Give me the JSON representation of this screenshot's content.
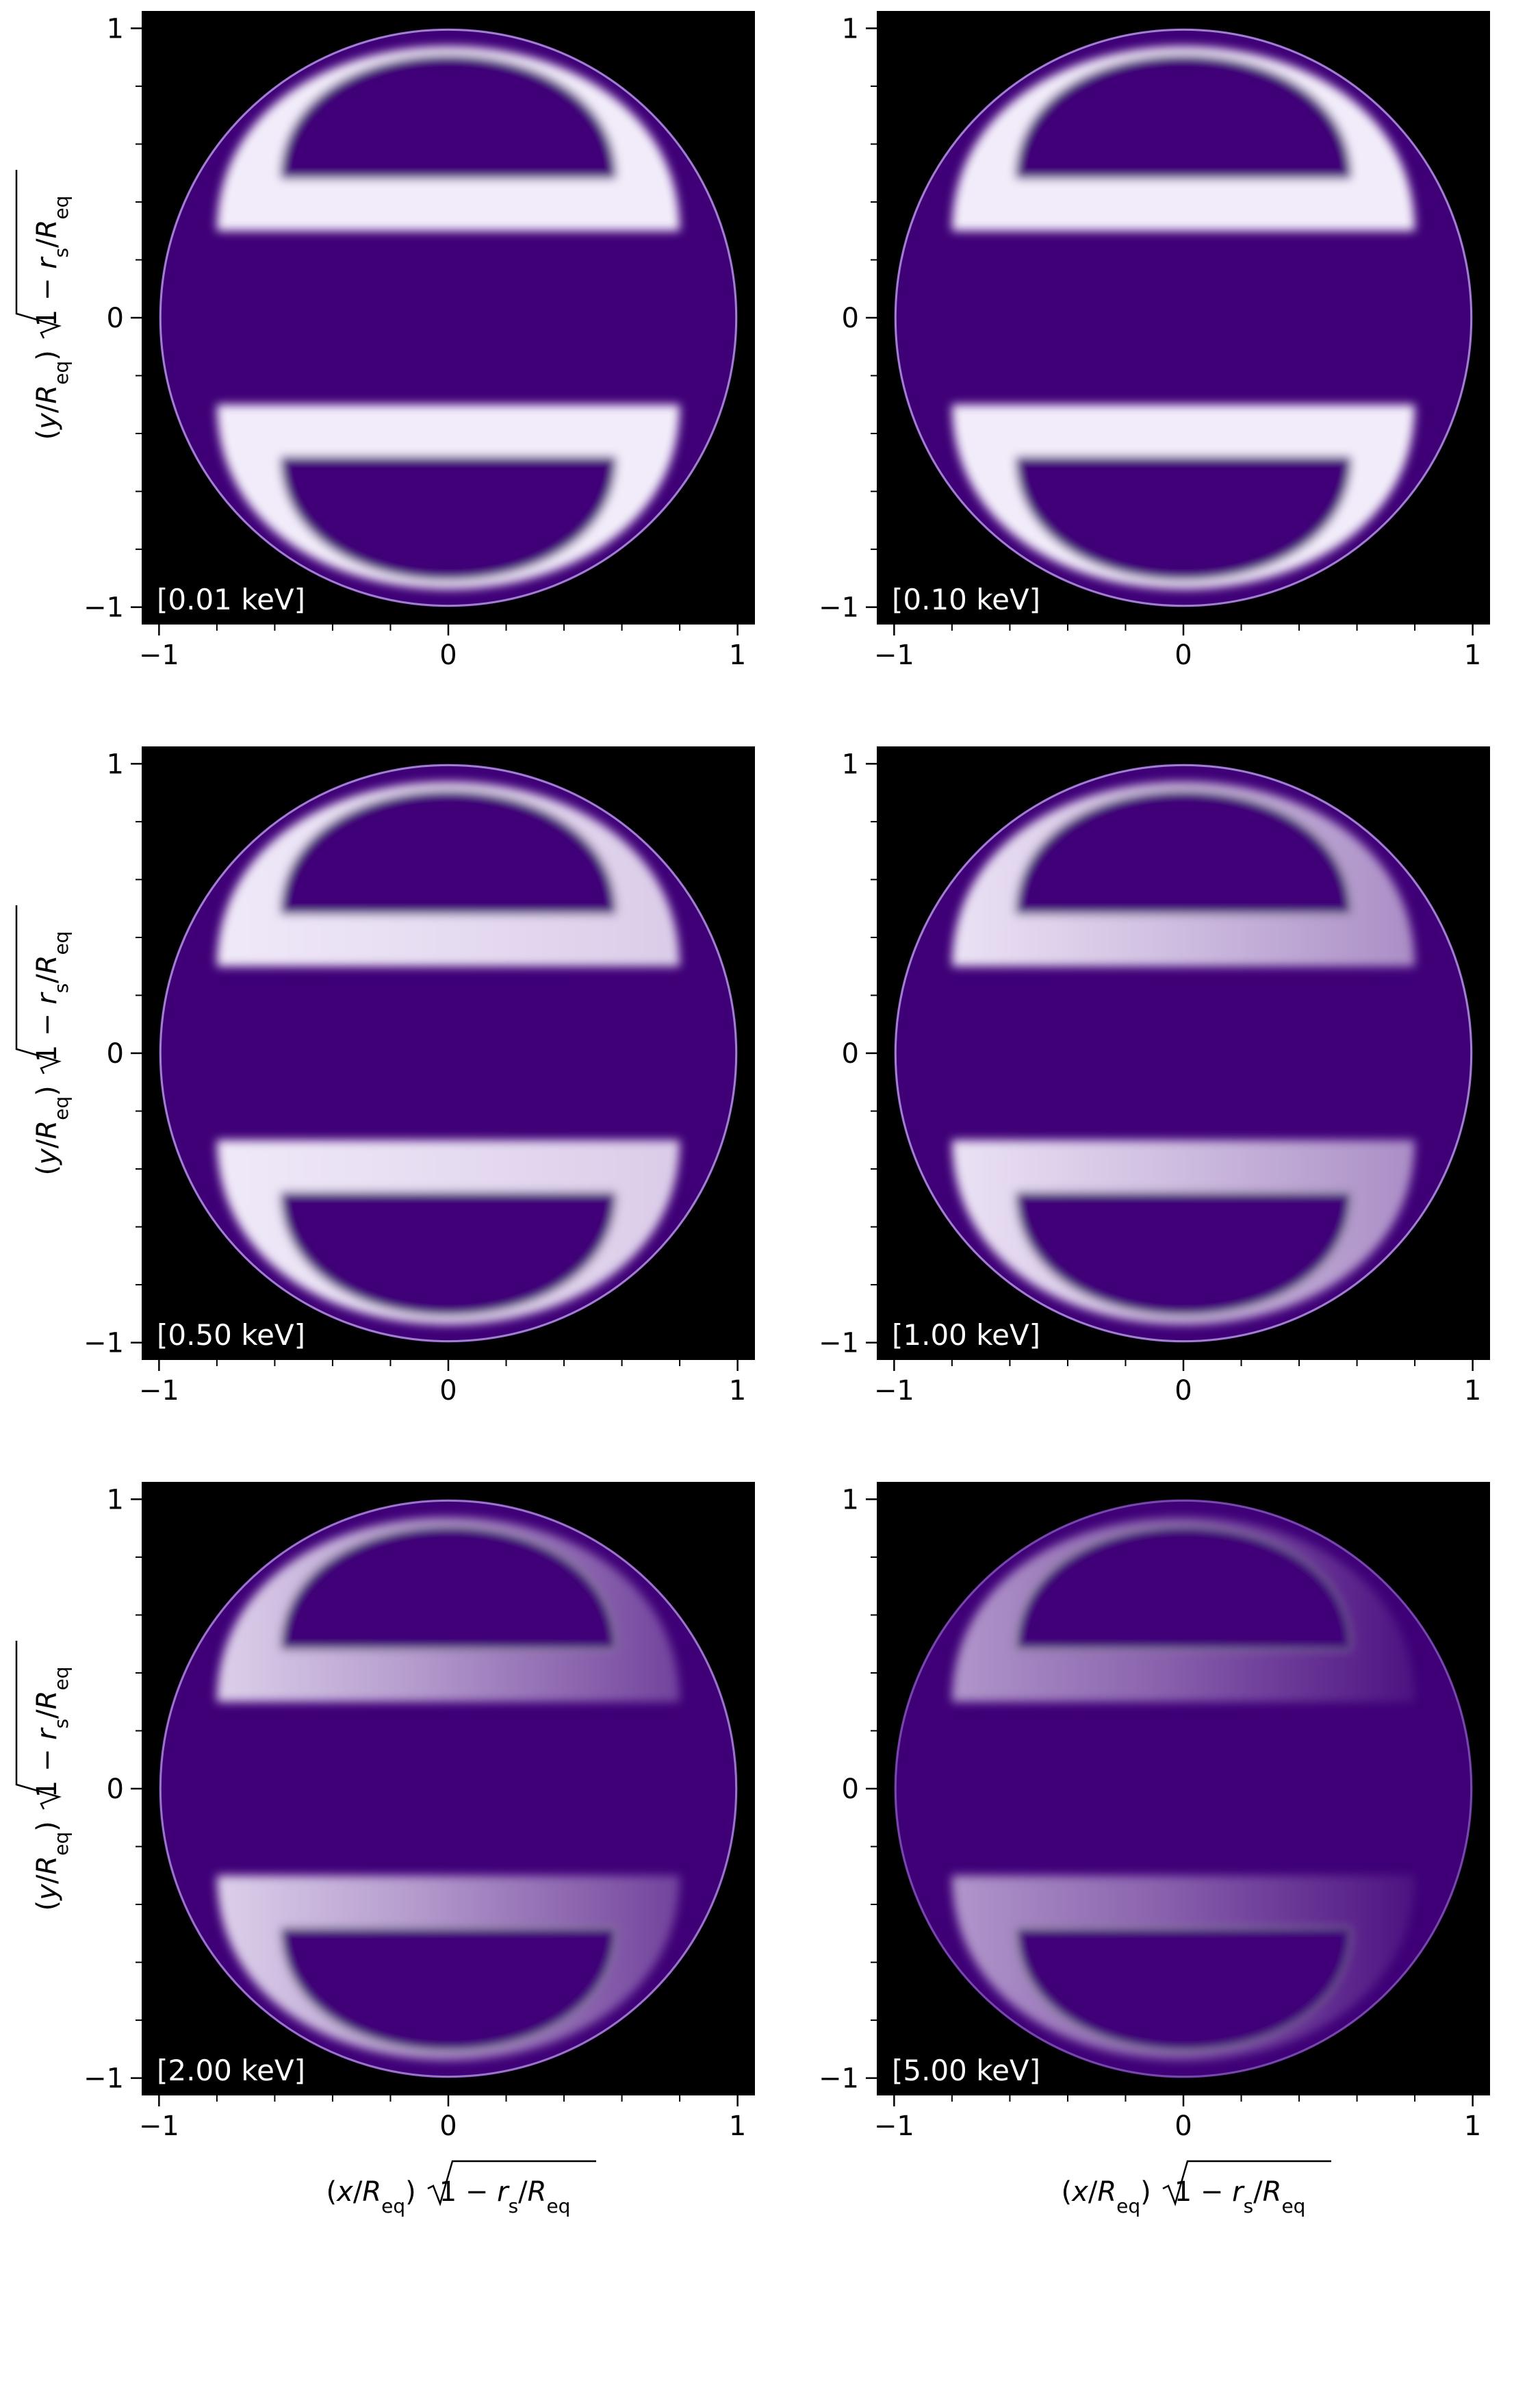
{
  "colors": {
    "background": "#000000",
    "disk": "#3f0077",
    "hotspot": "#f2ecfa",
    "limb": "#c8b6f0"
  },
  "axes": {
    "xlabel": {
      "p1": "(",
      "var": "x",
      "p2": "/",
      "R": "R",
      "sub": "eq",
      "p3": ")",
      "rad1": "1 − ",
      "r": "r",
      "rsub": "s",
      "slash": "/",
      "R2": "R",
      "sub2": "eq"
    },
    "ylabel": {
      "p1": "(",
      "var": "y",
      "p2": "/",
      "R": "R",
      "sub": "eq",
      "p3": ")",
      "rad1": "1 − ",
      "r": "r",
      "rsub": "s",
      "slash": "/",
      "R2": "R",
      "sub2": "eq"
    }
  },
  "chart_data": [
    {
      "type": "heatmap",
      "label": "[0.01 keV]",
      "energy_keV": 0.01,
      "xlim": [
        -1.06,
        1.06
      ],
      "ylim": [
        -1.06,
        1.06
      ],
      "xticks": [
        -1,
        0,
        1
      ],
      "yticks": [
        -1,
        0,
        1
      ],
      "tick_labels": [
        "−1",
        "0",
        "1"
      ],
      "brightness": [
        1.0,
        1.0
      ]
    },
    {
      "type": "heatmap",
      "label": "[0.10 keV]",
      "energy_keV": 0.1,
      "xlim": [
        -1.06,
        1.06
      ],
      "ylim": [
        -1.06,
        1.06
      ],
      "xticks": [
        -1,
        0,
        1
      ],
      "yticks": [
        -1,
        0,
        1
      ],
      "tick_labels": [
        "−1",
        "0",
        "1"
      ],
      "brightness": [
        1.0,
        1.0
      ]
    },
    {
      "type": "heatmap",
      "label": "[0.50 keV]",
      "energy_keV": 0.5,
      "xlim": [
        -1.06,
        1.06
      ],
      "ylim": [
        -1.06,
        1.06
      ],
      "xticks": [
        -1,
        0,
        1
      ],
      "yticks": [
        -1,
        0,
        1
      ],
      "tick_labels": [
        "−1",
        "0",
        "1"
      ],
      "brightness": [
        1.0,
        0.85
      ]
    },
    {
      "type": "heatmap",
      "label": "[1.00 keV]",
      "energy_keV": 1.0,
      "xlim": [
        -1.06,
        1.06
      ],
      "ylim": [
        -1.06,
        1.06
      ],
      "xticks": [
        -1,
        0,
        1
      ],
      "yticks": [
        -1,
        0,
        1
      ],
      "tick_labels": [
        "−1",
        "0",
        "1"
      ],
      "brightness": [
        1.0,
        0.55
      ]
    },
    {
      "type": "heatmap",
      "label": "[2.00 keV]",
      "energy_keV": 2.0,
      "xlim": [
        -1.06,
        1.06
      ],
      "ylim": [
        -1.06,
        1.06
      ],
      "xticks": [
        -1,
        0,
        1
      ],
      "yticks": [
        -1,
        0,
        1
      ],
      "tick_labels": [
        "−1",
        "0",
        "1"
      ],
      "brightness": [
        0.95,
        0.2
      ]
    },
    {
      "type": "heatmap",
      "label": "[5.00 keV]",
      "energy_keV": 5.0,
      "xlim": [
        -1.06,
        1.06
      ],
      "ylim": [
        -1.06,
        1.06
      ],
      "xticks": [
        -1,
        0,
        1
      ],
      "yticks": [
        -1,
        0,
        1
      ],
      "tick_labels": [
        "−1",
        "0",
        "1"
      ],
      "brightness": [
        0.7,
        0.0
      ]
    }
  ]
}
